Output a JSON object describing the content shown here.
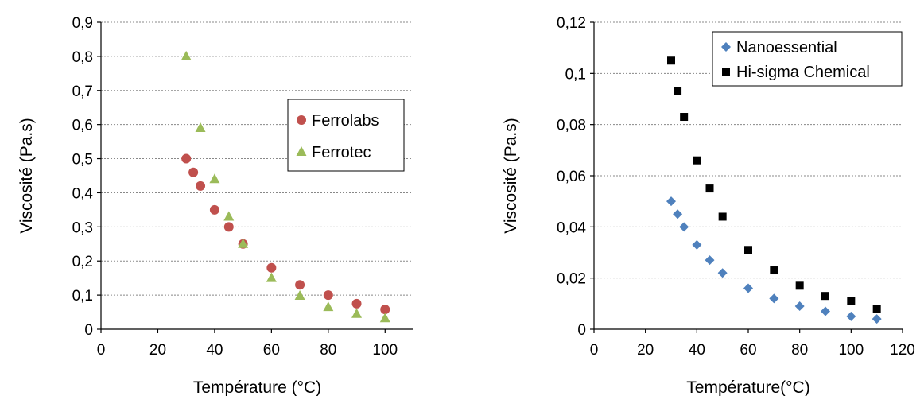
{
  "chart_data": [
    {
      "type": "scatter",
      "title": "",
      "xlabel": "Température (°C)",
      "ylabel": "Viscosité (Pa.s)",
      "xlim": [
        0,
        110
      ],
      "ylim": [
        0,
        0.9
      ],
      "xticks": [
        "0",
        "20",
        "40",
        "60",
        "80",
        "100"
      ],
      "yticks": [
        "0",
        "0,1",
        "0,2",
        "0,3",
        "0,4",
        "0,5",
        "0,6",
        "0,7",
        "0,8",
        "0,9"
      ],
      "grid": "horizontal",
      "legend_position": "right",
      "series": [
        {
          "name": "Ferrolabs",
          "marker": "circle",
          "color": "#C0504D",
          "x": [
            30,
            32.5,
            35,
            40,
            45,
            50,
            60,
            70,
            80,
            90,
            100
          ],
          "y": [
            0.5,
            0.46,
            0.42,
            0.35,
            0.3,
            0.25,
            0.18,
            0.13,
            0.1,
            0.075,
            0.058
          ]
        },
        {
          "name": "Ferrotec",
          "marker": "triangle",
          "color": "#9BBB59",
          "x": [
            30,
            35,
            40,
            45,
            50,
            60,
            70,
            80,
            90,
            100
          ],
          "y": [
            0.8,
            0.59,
            0.44,
            0.33,
            0.25,
            0.15,
            0.098,
            0.065,
            0.045,
            0.032
          ]
        }
      ]
    },
    {
      "type": "scatter",
      "title": "",
      "xlabel": "Température(°C)",
      "ylabel": "Viscosité (Pa.s)",
      "xlim": [
        0,
        120
      ],
      "ylim": [
        0,
        0.12
      ],
      "xticks": [
        "0",
        "20",
        "40",
        "60",
        "80",
        "100",
        "120"
      ],
      "yticks": [
        "0",
        "0,02",
        "0,04",
        "0,06",
        "0,08",
        "0,1",
        "0,12"
      ],
      "grid": "horizontal",
      "legend_position": "top-right",
      "series": [
        {
          "name": "Nanoessential",
          "marker": "diamond",
          "color": "#4F81BD",
          "x": [
            30,
            32.5,
            35,
            40,
            45,
            50,
            60,
            70,
            80,
            90,
            100,
            110
          ],
          "y": [
            0.05,
            0.045,
            0.04,
            0.033,
            0.027,
            0.022,
            0.016,
            0.012,
            0.009,
            0.007,
            0.005,
            0.004
          ]
        },
        {
          "name": "Hi-sigma Chemical",
          "marker": "square",
          "color": "#000000",
          "x": [
            30,
            32.5,
            35,
            40,
            45,
            50,
            60,
            70,
            80,
            90,
            100,
            110
          ],
          "y": [
            0.105,
            0.093,
            0.083,
            0.066,
            0.055,
            0.044,
            0.031,
            0.023,
            0.017,
            0.013,
            0.011,
            0.008
          ]
        }
      ]
    }
  ]
}
